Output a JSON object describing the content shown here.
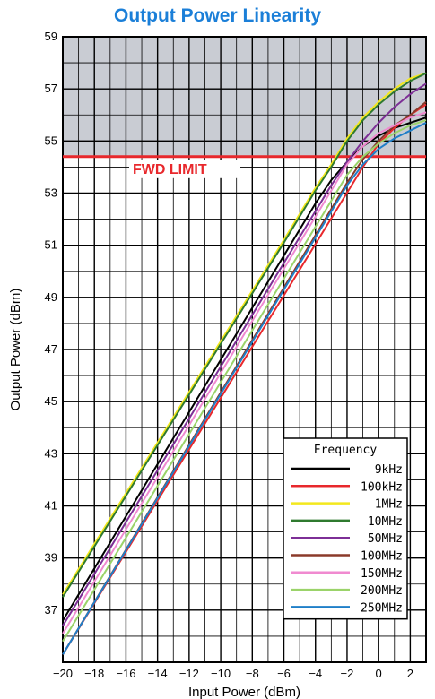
{
  "chart_data": {
    "type": "line",
    "title": "Output Power Linearity",
    "xlabel": "Input Power (dBm)",
    "ylabel": "Output Power (dBm)",
    "xlim": [
      -20,
      3
    ],
    "ylim": [
      35,
      59
    ],
    "x_ticks": [
      -20,
      -18,
      -16,
      -14,
      -12,
      -10,
      -8,
      -6,
      -4,
      -2,
      0,
      2
    ],
    "y_ticks": [
      37,
      39,
      41,
      43,
      45,
      47,
      49,
      51,
      53,
      55,
      57,
      59
    ],
    "grid": true,
    "limit_line": {
      "label": "FWD LIMIT",
      "value": 54.4,
      "color": "#e8282c",
      "shade_color": "#c9ccd3"
    },
    "legend": {
      "title": "Frequency",
      "placement": "bottom-right"
    },
    "series": [
      {
        "name": "9kHz",
        "color": "#000000",
        "x": [
          -20,
          -4,
          -3,
          -2,
          -1,
          0,
          1,
          2,
          3
        ],
        "y": [
          36.6,
          52.6,
          53.5,
          54.2,
          54.8,
          55.2,
          55.5,
          55.7,
          55.9
        ]
      },
      {
        "name": "100kHz",
        "color": "#e8282c",
        "x": [
          -20,
          -1,
          0,
          1,
          2,
          3
        ],
        "y": [
          35.3,
          54.0,
          54.9,
          55.5,
          56.0,
          56.4
        ]
      },
      {
        "name": "1MHz",
        "color": "#f3e81d",
        "x": [
          -20,
          -6,
          -4,
          -3,
          -2,
          -1,
          0,
          1,
          2,
          3
        ],
        "y": [
          37.6,
          51.2,
          53.2,
          54.1,
          55.1,
          55.9,
          56.5,
          57.0,
          57.4,
          57.6
        ]
      },
      {
        "name": "10MHz",
        "color": "#2f7a2f",
        "x": [
          -20,
          -6,
          -4,
          -3,
          -2,
          -1,
          0,
          1,
          2,
          3
        ],
        "y": [
          37.5,
          51.1,
          53.1,
          54.0,
          55.0,
          55.8,
          56.4,
          56.9,
          57.3,
          57.6
        ]
      },
      {
        "name": "50MHz",
        "color": "#7d2f96",
        "x": [
          -20,
          -3,
          -2,
          -1,
          0,
          1,
          2,
          3
        ],
        "y": [
          36.4,
          53.3,
          54.2,
          55.0,
          55.7,
          56.3,
          56.8,
          57.2
        ]
      },
      {
        "name": "100MHz",
        "color": "#8b3a2a",
        "x": [
          -20,
          -2,
          -1,
          0,
          1,
          2,
          3
        ],
        "y": [
          35.3,
          53.4,
          54.3,
          55.0,
          55.6,
          56.0,
          56.5
        ]
      },
      {
        "name": "150MHz",
        "color": "#f08ad0",
        "x": [
          -20,
          -2,
          -1,
          0,
          1,
          2,
          3
        ],
        "y": [
          36.1,
          54.1,
          54.8,
          55.3,
          55.6,
          55.9,
          56.1
        ]
      },
      {
        "name": "200MHz",
        "color": "#9bd36a",
        "x": [
          -20,
          -2,
          -1,
          0,
          1,
          2,
          3
        ],
        "y": [
          35.8,
          53.7,
          54.4,
          54.9,
          55.3,
          55.6,
          55.8
        ]
      },
      {
        "name": "250MHz",
        "color": "#1f7fc8",
        "x": [
          -20,
          -2,
          -1,
          0,
          1,
          2,
          3
        ],
        "y": [
          35.3,
          53.3,
          54.1,
          54.7,
          55.1,
          55.4,
          55.7
        ]
      }
    ]
  }
}
